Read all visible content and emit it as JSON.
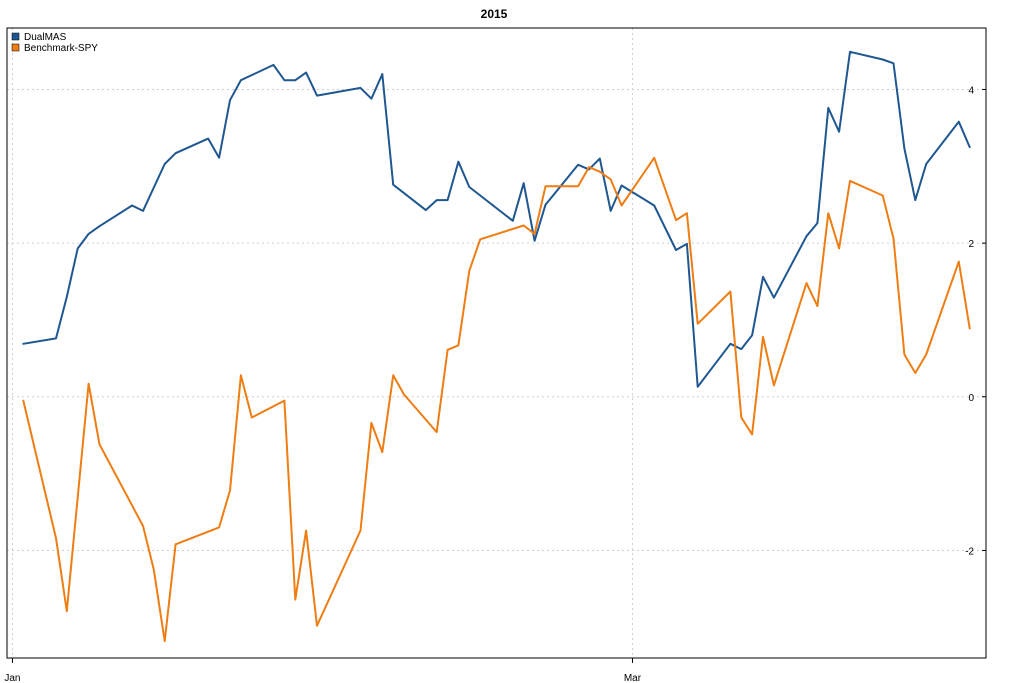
{
  "chart_data": {
    "type": "line",
    "title": "2015",
    "xlabel": "",
    "ylabel": "",
    "x_ticks": [
      {
        "label": "Jan",
        "x": 0
      },
      {
        "label": "Mar",
        "x": 57
      }
    ],
    "xlim": [
      -0.5,
      89.5
    ],
    "ylim": [
      -3.4,
      4.8
    ],
    "y_ticks": [
      -2,
      0,
      2,
      4
    ],
    "y_axis_side": "right",
    "grid": true,
    "legend": "top-left",
    "series": [
      {
        "name": "DualMAS",
        "color": "#1f5791",
        "points": [
          [
            1,
            0.69
          ],
          [
            4,
            0.76
          ],
          [
            5,
            1.3
          ],
          [
            6,
            1.93
          ],
          [
            7,
            2.12
          ],
          [
            8,
            2.22
          ],
          [
            11,
            2.49
          ],
          [
            12,
            2.42
          ],
          [
            14,
            3.03
          ],
          [
            15,
            3.17
          ],
          [
            18,
            3.36
          ],
          [
            19,
            3.11
          ],
          [
            20,
            3.86
          ],
          [
            21,
            4.12
          ],
          [
            24,
            4.32
          ],
          [
            25,
            4.12
          ],
          [
            26,
            4.12
          ],
          [
            27,
            4.22
          ],
          [
            28,
            3.92
          ],
          [
            32,
            4.02
          ],
          [
            33,
            3.88
          ],
          [
            34,
            4.2
          ],
          [
            35,
            2.76
          ],
          [
            38,
            2.43
          ],
          [
            39,
            2.56
          ],
          [
            40,
            2.56
          ],
          [
            41,
            3.06
          ],
          [
            42,
            2.73
          ],
          [
            46,
            2.29
          ],
          [
            47,
            2.78
          ],
          [
            48,
            2.03
          ],
          [
            49,
            2.5
          ],
          [
            52,
            3.02
          ],
          [
            53,
            2.96
          ],
          [
            54,
            3.1
          ],
          [
            55,
            2.42
          ],
          [
            56,
            2.75
          ],
          [
            59,
            2.49
          ],
          [
            61,
            1.91
          ],
          [
            62,
            1.99
          ],
          [
            63,
            0.13
          ],
          [
            66,
            0.69
          ],
          [
            67,
            0.62
          ],
          [
            68,
            0.8
          ],
          [
            69,
            1.56
          ],
          [
            70,
            1.29
          ],
          [
            73,
            2.09
          ],
          [
            74,
            2.26
          ],
          [
            75,
            3.76
          ],
          [
            76,
            3.45
          ],
          [
            77,
            4.49
          ],
          [
            80,
            4.39
          ],
          [
            81,
            4.34
          ],
          [
            82,
            3.23
          ],
          [
            83,
            2.56
          ],
          [
            84,
            3.03
          ],
          [
            87,
            3.58
          ],
          [
            88,
            3.25
          ]
        ]
      },
      {
        "name": "Benchmark-SPY",
        "color": "#ee7d13",
        "points": [
          [
            1,
            -0.05
          ],
          [
            4,
            -1.84
          ],
          [
            5,
            -2.79
          ],
          [
            7,
            0.17
          ],
          [
            8,
            -0.62
          ],
          [
            12,
            -1.68
          ],
          [
            13,
            -2.25
          ],
          [
            14,
            -3.18
          ],
          [
            15,
            -1.92
          ],
          [
            19,
            -1.7
          ],
          [
            20,
            -1.22
          ],
          [
            21,
            0.28
          ],
          [
            22,
            -0.27
          ],
          [
            25,
            -0.05
          ],
          [
            26,
            -2.64
          ],
          [
            27,
            -1.74
          ],
          [
            28,
            -2.98
          ],
          [
            32,
            -1.74
          ],
          [
            33,
            -0.34
          ],
          [
            34,
            -0.72
          ],
          [
            35,
            0.28
          ],
          [
            36,
            0.03
          ],
          [
            39,
            -0.46
          ],
          [
            40,
            0.61
          ],
          [
            41,
            0.67
          ],
          [
            42,
            1.64
          ],
          [
            43,
            2.05
          ],
          [
            47,
            2.23
          ],
          [
            48,
            2.12
          ],
          [
            49,
            2.74
          ],
          [
            52,
            2.74
          ],
          [
            53,
            2.99
          ],
          [
            54,
            2.93
          ],
          [
            55,
            2.83
          ],
          [
            56,
            2.49
          ],
          [
            59,
            3.11
          ],
          [
            61,
            2.3
          ],
          [
            62,
            2.39
          ],
          [
            63,
            0.95
          ],
          [
            66,
            1.37
          ],
          [
            67,
            -0.27
          ],
          [
            68,
            -0.49
          ],
          [
            69,
            0.78
          ],
          [
            70,
            0.15
          ],
          [
            73,
            1.48
          ],
          [
            74,
            1.18
          ],
          [
            75,
            2.39
          ],
          [
            76,
            1.93
          ],
          [
            77,
            2.81
          ],
          [
            80,
            2.62
          ],
          [
            81,
            2.06
          ],
          [
            82,
            0.55
          ],
          [
            83,
            0.31
          ],
          [
            84,
            0.55
          ],
          [
            87,
            1.76
          ],
          [
            88,
            0.89
          ]
        ]
      }
    ]
  }
}
